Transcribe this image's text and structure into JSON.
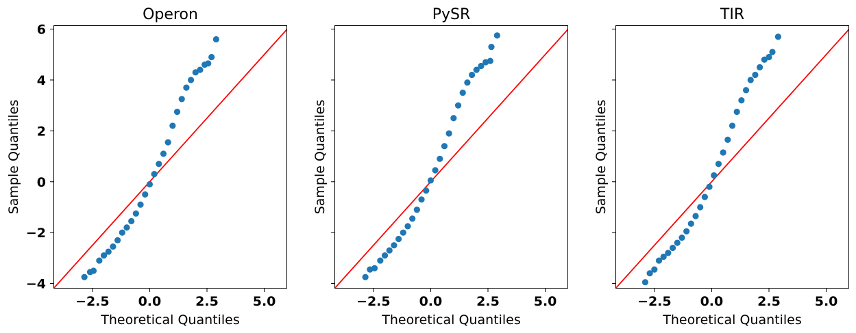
{
  "chart_data": [
    {
      "type": "scatter",
      "title": "Operon",
      "xlabel": "Theoretical Quantiles",
      "ylabel": "Sample Quantiles",
      "xlim": [
        -4.2,
        6.0
      ],
      "ylim": [
        -4.2,
        6.15
      ],
      "xticks": [
        "−2.5",
        "0.0",
        "2.5",
        "5.0"
      ],
      "xtick_values": [
        -2.5,
        0.0,
        2.5,
        5.0
      ],
      "yticks": [
        "−4",
        "−2",
        "0",
        "2",
        "4",
        "6"
      ],
      "ytick_values": [
        -4,
        -2,
        0,
        2,
        4,
        6
      ],
      "show_yticklabels": true,
      "reference_line": "45-degree (y = x)",
      "series": [
        {
          "color": "#1f77b4",
          "x": [
            -2.85,
            -2.6,
            -2.45,
            -2.2,
            -2.0,
            -1.8,
            -1.6,
            -1.4,
            -1.2,
            -1.0,
            -0.8,
            -0.6,
            -0.4,
            -0.2,
            0.0,
            0.2,
            0.4,
            0.6,
            0.8,
            1.0,
            1.2,
            1.4,
            1.6,
            1.8,
            2.0,
            2.2,
            2.4,
            2.55,
            2.7,
            2.9
          ],
          "y": [
            -3.75,
            -3.55,
            -3.5,
            -3.1,
            -2.9,
            -2.75,
            -2.55,
            -2.3,
            -2.0,
            -1.8,
            -1.55,
            -1.25,
            -0.9,
            -0.5,
            -0.1,
            0.3,
            0.7,
            1.1,
            1.55,
            2.2,
            2.75,
            3.25,
            3.7,
            4.0,
            4.3,
            4.4,
            4.6,
            4.65,
            4.9,
            5.6
          ]
        }
      ]
    },
    {
      "type": "scatter",
      "title": "PySR",
      "xlabel": "Theoretical Quantiles",
      "ylabel": "Sample Quantiles",
      "xlim": [
        -4.2,
        6.0
      ],
      "ylim": [
        -4.2,
        6.15
      ],
      "xticks": [
        "−2.5",
        "0.0",
        "2.5",
        "5.0"
      ],
      "xtick_values": [
        -2.5,
        0.0,
        2.5,
        5.0
      ],
      "yticks": [],
      "ytick_values": [
        -4,
        -2,
        0,
        2,
        4,
        6
      ],
      "show_yticklabels": false,
      "reference_line": "45-degree (y = x)",
      "series": [
        {
          "color": "#1f77b4",
          "x": [
            -2.85,
            -2.65,
            -2.45,
            -2.2,
            -2.0,
            -1.8,
            -1.6,
            -1.4,
            -1.2,
            -1.0,
            -0.8,
            -0.6,
            -0.4,
            -0.2,
            0.0,
            0.2,
            0.4,
            0.6,
            0.8,
            1.0,
            1.2,
            1.4,
            1.6,
            1.8,
            2.0,
            2.2,
            2.4,
            2.6,
            2.65,
            2.9
          ],
          "y": [
            -3.75,
            -3.45,
            -3.4,
            -3.1,
            -2.9,
            -2.7,
            -2.5,
            -2.25,
            -2.0,
            -1.75,
            -1.45,
            -1.1,
            -0.7,
            -0.35,
            0.05,
            0.45,
            0.9,
            1.4,
            1.9,
            2.5,
            3.0,
            3.5,
            3.9,
            4.2,
            4.4,
            4.55,
            4.7,
            4.75,
            5.3,
            5.75
          ]
        }
      ]
    },
    {
      "type": "scatter",
      "title": "TIR",
      "xlabel": "Theoretical Quantiles",
      "ylabel": "Sample Quantiles",
      "xlim": [
        -4.2,
        6.0
      ],
      "ylim": [
        -4.2,
        6.15
      ],
      "xticks": [
        "−2.5",
        "0.0",
        "2.5",
        "5.0"
      ],
      "xtick_values": [
        -2.5,
        0.0,
        2.5,
        5.0
      ],
      "yticks": [],
      "ytick_values": [
        -4,
        -2,
        0,
        2,
        4,
        6
      ],
      "show_yticklabels": false,
      "reference_line": "45-degree (y = x)",
      "series": [
        {
          "color": "#1f77b4",
          "x": [
            -2.9,
            -2.7,
            -2.5,
            -2.3,
            -2.1,
            -1.9,
            -1.7,
            -1.5,
            -1.3,
            -1.1,
            -0.9,
            -0.7,
            -0.5,
            -0.3,
            -0.1,
            0.1,
            0.3,
            0.5,
            0.7,
            0.9,
            1.1,
            1.3,
            1.5,
            1.7,
            1.9,
            2.1,
            2.3,
            2.5,
            2.65,
            2.9
          ],
          "y": [
            -3.95,
            -3.6,
            -3.45,
            -3.1,
            -2.95,
            -2.8,
            -2.6,
            -2.4,
            -2.2,
            -1.95,
            -1.65,
            -1.35,
            -1.0,
            -0.6,
            -0.2,
            0.25,
            0.7,
            1.15,
            1.65,
            2.2,
            2.75,
            3.2,
            3.6,
            4.0,
            4.2,
            4.5,
            4.8,
            4.9,
            5.1,
            5.7
          ]
        }
      ]
    }
  ]
}
